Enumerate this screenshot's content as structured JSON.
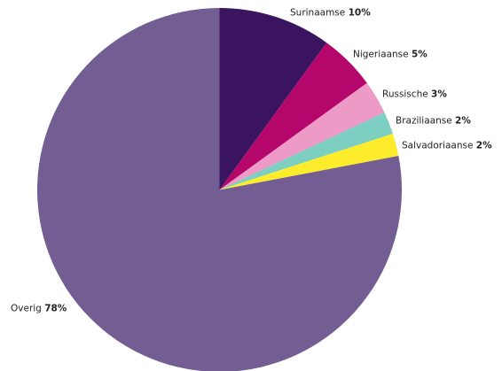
{
  "chart_data": {
    "type": "pie",
    "title": "",
    "slices": [
      {
        "label": "Surinaamse",
        "value": 10,
        "value_label": "10%",
        "color": "#3b1460"
      },
      {
        "label": "Nigeriaanse",
        "value": 5,
        "value_label": "5%",
        "color": "#b5076b"
      },
      {
        "label": "Russische",
        "value": 3,
        "value_label": "3%",
        "color": "#ee9ac6"
      },
      {
        "label": "Braziliaanse",
        "value": 2,
        "value_label": "2%",
        "color": "#7ccfc1"
      },
      {
        "label": "Salvadoriaanse",
        "value": 2,
        "value_label": "2%",
        "color": "#fcec2c"
      },
      {
        "label": "Overig",
        "value": 78,
        "value_label": "78%",
        "color": "#735e93"
      }
    ],
    "start_angle": "12 o'clock",
    "direction": "clockwise",
    "legend": "none (labels beside slices)"
  }
}
